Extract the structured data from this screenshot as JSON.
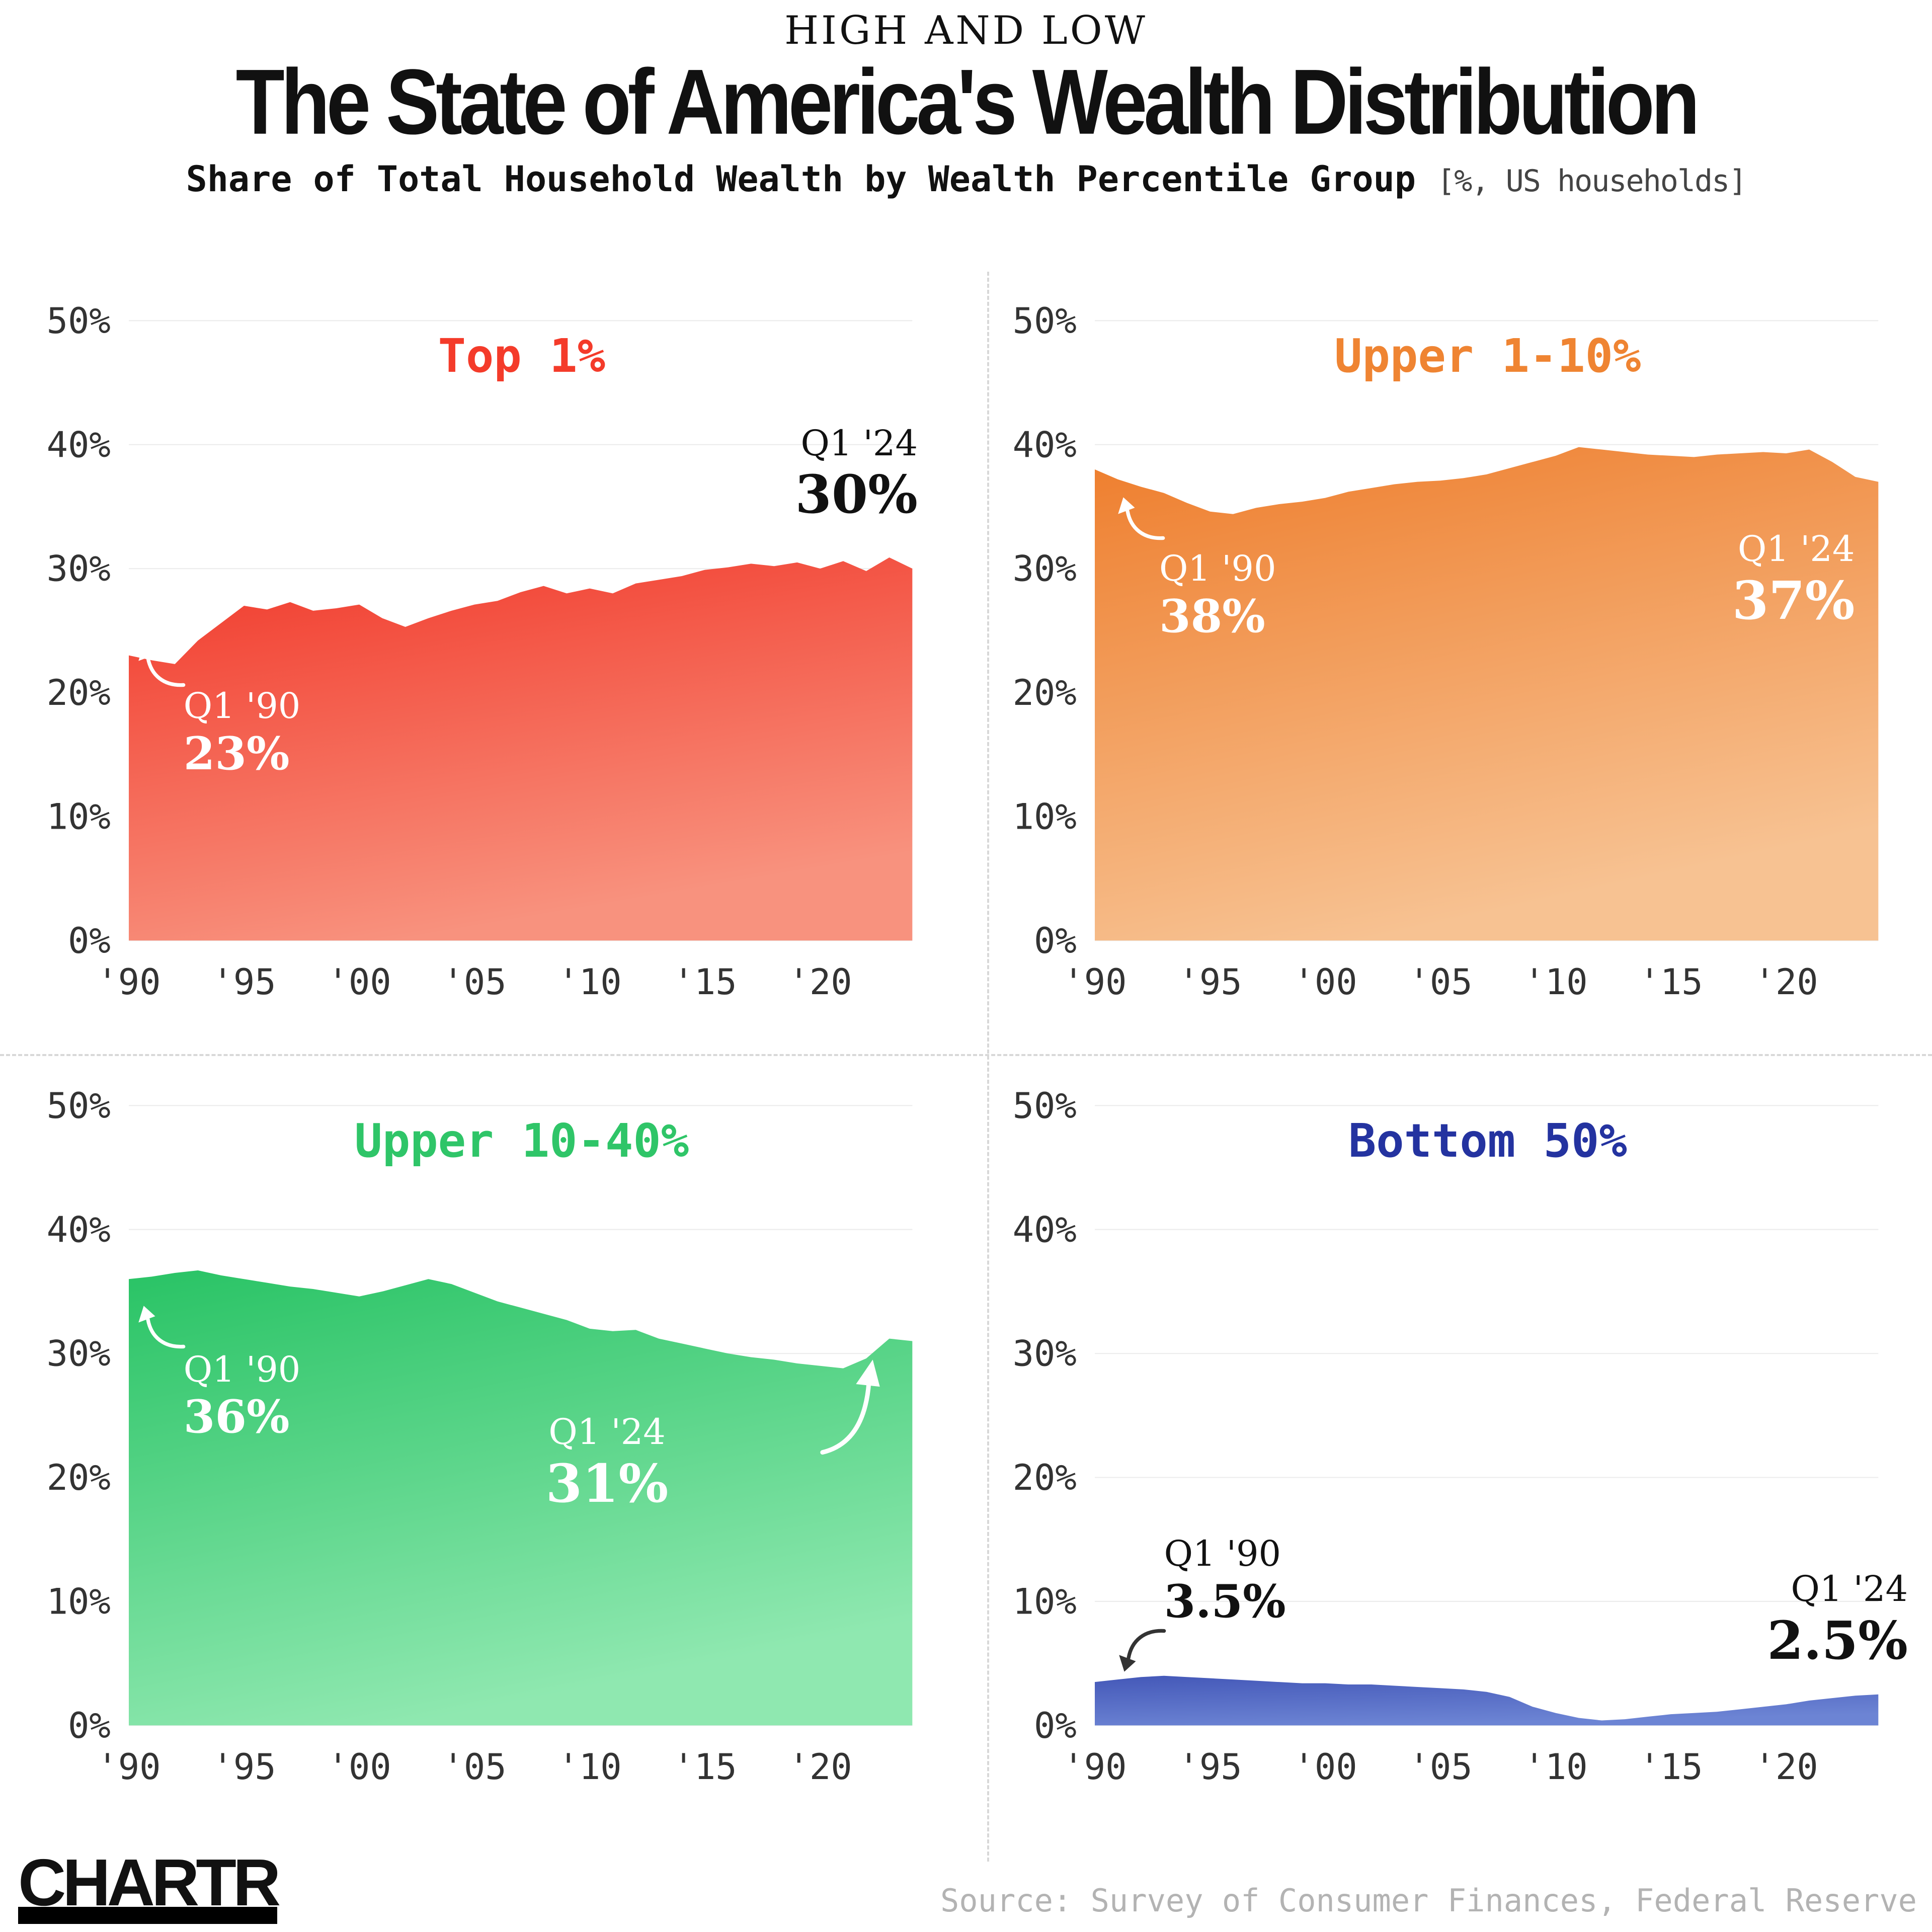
{
  "header": {
    "kicker": "HIGH AND LOW",
    "title": "The State of America's Wealth Distribution",
    "subtitle": "Share of Total Household Wealth by Wealth Percentile Group",
    "subtitle_unit": "[%, US households]"
  },
  "axis": {
    "yticks": {
      "values": [
        0,
        10,
        20,
        30,
        40,
        50
      ],
      "labels": [
        "0%",
        "10%",
        "20%",
        "30%",
        "40%",
        "50%"
      ]
    },
    "xticks": {
      "values": [
        1990,
        1995,
        2000,
        2005,
        2010,
        2015,
        2020
      ],
      "labels": [
        "'90",
        "'95",
        "'00",
        "'05",
        "'10",
        "'15",
        "'20"
      ]
    }
  },
  "chart_data": [
    {
      "type": "area",
      "title": "Top 1%",
      "title_color": "#f43b2a",
      "gradient_top": "#f1382a",
      "gradient_bottom": "#f8927e",
      "ylim": [
        0,
        50
      ],
      "grid": true,
      "x": [
        1990,
        1991,
        1992,
        1993,
        1994,
        1995,
        1996,
        1997,
        1998,
        1999,
        2000,
        2001,
        2002,
        2003,
        2004,
        2005,
        2006,
        2007,
        2008,
        2009,
        2010,
        2011,
        2012,
        2013,
        2014,
        2015,
        2016,
        2017,
        2018,
        2019,
        2020,
        2021,
        2022,
        2023,
        2024
      ],
      "values": [
        23,
        22.6,
        22.3,
        24.2,
        25.6,
        27,
        26.7,
        27.3,
        26.6,
        26.8,
        27.1,
        26,
        25.3,
        26,
        26.6,
        27.1,
        27.4,
        28.1,
        28.6,
        28,
        28.4,
        28,
        28.8,
        29.1,
        29.4,
        29.9,
        30.1,
        30.4,
        30.2,
        30.5,
        30,
        30.6,
        29.8,
        30.9,
        30
      ],
      "annotations": {
        "start": {
          "label": "Q1 '90",
          "value": "23%"
        },
        "end": {
          "label": "Q1 '24",
          "value": "30%"
        }
      }
    },
    {
      "type": "area",
      "title": "Upper 1-10%",
      "title_color": "#ef8432",
      "gradient_top": "#ee7d2c",
      "gradient_bottom": "#f7c292",
      "ylim": [
        0,
        50
      ],
      "grid": true,
      "x": [
        1990,
        1991,
        1992,
        1993,
        1994,
        1995,
        1996,
        1997,
        1998,
        1999,
        2000,
        2001,
        2002,
        2003,
        2004,
        2005,
        2006,
        2007,
        2008,
        2009,
        2010,
        2011,
        2012,
        2013,
        2014,
        2015,
        2016,
        2017,
        2018,
        2019,
        2020,
        2021,
        2022,
        2023,
        2024
      ],
      "values": [
        38,
        37.2,
        36.6,
        36.1,
        35.3,
        34.6,
        34.4,
        34.9,
        35.2,
        35.4,
        35.7,
        36.2,
        36.5,
        36.8,
        37,
        37.1,
        37.3,
        37.6,
        38.1,
        38.6,
        39.1,
        39.8,
        39.6,
        39.4,
        39.2,
        39.1,
        39,
        39.2,
        39.3,
        39.4,
        39.3,
        39.6,
        38.6,
        37.4,
        37
      ],
      "annotations": {
        "start": {
          "label": "Q1 '90",
          "value": "38%"
        },
        "end": {
          "label": "Q1 '24",
          "value": "37%"
        }
      }
    },
    {
      "type": "area",
      "title": "Upper 10-40%",
      "title_color": "#2fc568",
      "gradient_top": "#29c365",
      "gradient_bottom": "#8fe8b0",
      "ylim": [
        0,
        50
      ],
      "grid": true,
      "x": [
        1990,
        1991,
        1992,
        1993,
        1994,
        1995,
        1996,
        1997,
        1998,
        1999,
        2000,
        2001,
        2002,
        2003,
        2004,
        2005,
        2006,
        2007,
        2008,
        2009,
        2010,
        2011,
        2012,
        2013,
        2014,
        2015,
        2016,
        2017,
        2018,
        2019,
        2020,
        2021,
        2022,
        2023,
        2024
      ],
      "values": [
        36,
        36.2,
        36.5,
        36.7,
        36.3,
        36,
        35.7,
        35.4,
        35.2,
        34.9,
        34.6,
        35,
        35.5,
        36,
        35.6,
        34.9,
        34.2,
        33.7,
        33.2,
        32.7,
        32,
        31.8,
        31.9,
        31.2,
        30.8,
        30.4,
        30,
        29.7,
        29.5,
        29.2,
        29,
        28.8,
        29.6,
        31.2,
        31
      ],
      "annotations": {
        "start": {
          "label": "Q1 '90",
          "value": "36%"
        },
        "end": {
          "label": "Q1 '24",
          "value": "31%"
        }
      }
    },
    {
      "type": "area",
      "title": "Bottom 50%",
      "title_color": "#2433a0",
      "gradient_top": "#4458b8",
      "gradient_bottom": "#6c84d4",
      "ylim": [
        0,
        50
      ],
      "grid": true,
      "x": [
        1990,
        1991,
        1992,
        1993,
        1994,
        1995,
        1996,
        1997,
        1998,
        1999,
        2000,
        2001,
        2002,
        2003,
        2004,
        2005,
        2006,
        2007,
        2008,
        2009,
        2010,
        2011,
        2012,
        2013,
        2014,
        2015,
        2016,
        2017,
        2018,
        2019,
        2020,
        2021,
        2022,
        2023,
        2024
      ],
      "values": [
        3.5,
        3.7,
        3.9,
        4,
        3.9,
        3.8,
        3.7,
        3.6,
        3.5,
        3.4,
        3.4,
        3.3,
        3.3,
        3.2,
        3.1,
        3,
        2.9,
        2.7,
        2.3,
        1.5,
        1,
        0.6,
        0.4,
        0.5,
        0.7,
        0.9,
        1,
        1.1,
        1.3,
        1.5,
        1.7,
        2,
        2.2,
        2.4,
        2.5
      ],
      "annotations": {
        "start": {
          "label": "Q1 '90",
          "value": "3.5%"
        },
        "end": {
          "label": "Q1 '24",
          "value": "2.5%"
        }
      }
    }
  ],
  "footer": {
    "logo": "CHARTR",
    "source": "Source: Survey of Consumer Finances, Federal Reserve"
  }
}
